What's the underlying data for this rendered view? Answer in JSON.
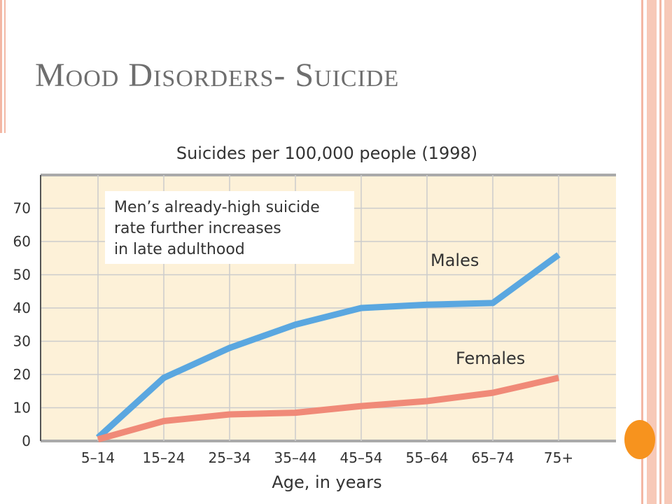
{
  "slide": {
    "title": "Mood Disorders- Suicide"
  },
  "theme": {
    "accent_orange": "#f7931e",
    "stripe_color": "#f3b7a4",
    "title_color": "#6e6e6e"
  },
  "chart_data": {
    "type": "line",
    "title": "Suicides per 100,000 people (1998)",
    "xlabel": "Age, in years",
    "ylabel": "",
    "categories": [
      "5–14",
      "15–24",
      "25–34",
      "35–44",
      "45–54",
      "55–64",
      "65–74",
      "75+"
    ],
    "ylim": [
      0,
      80
    ],
    "yticks": [
      0,
      10,
      20,
      30,
      40,
      50,
      60,
      70
    ],
    "grid": true,
    "background_color": "#fdf1d8",
    "series": [
      {
        "name": "Males",
        "color": "#5aa7e0",
        "values": [
          1,
          19,
          28,
          35,
          40,
          41,
          41.5,
          56
        ]
      },
      {
        "name": "Females",
        "color": "#f08a78",
        "values": [
          0.5,
          6,
          8,
          8.5,
          10.5,
          12,
          14.5,
          19
        ]
      }
    ],
    "annotation": {
      "lines": [
        "Men’s already-high suicide",
        "rate further increases",
        "in late adulthood"
      ]
    }
  }
}
